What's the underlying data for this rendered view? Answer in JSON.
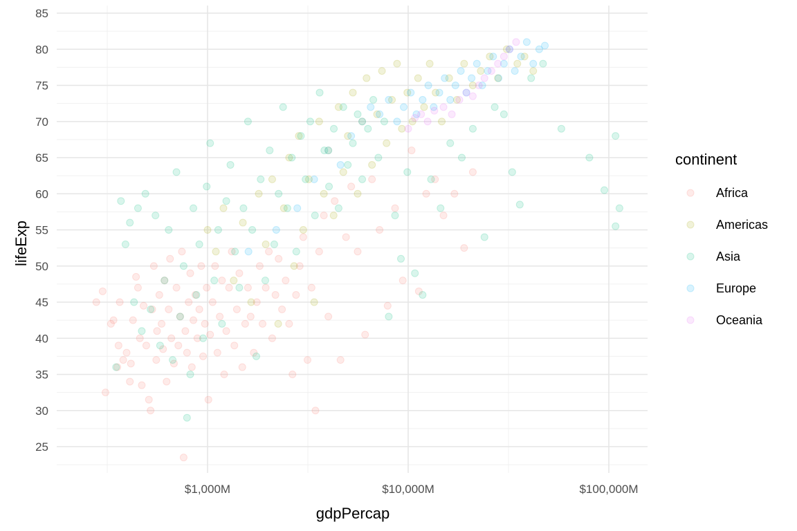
{
  "chart_data": {
    "type": "scatter",
    "title": "",
    "xlabel": "gdpPercap",
    "ylabel": "lifeExp",
    "x_scale": "log10",
    "xlim": [
      200,
      150000
    ],
    "ylim": [
      21,
      86
    ],
    "x_ticks": [
      {
        "value": 1000,
        "label": "$1,000M"
      },
      {
        "value": 10000,
        "label": "$10,000M"
      },
      {
        "value": 100000,
        "label": "$100,000M"
      }
    ],
    "y_ticks": [
      {
        "value": 25,
        "label": "25"
      },
      {
        "value": 30,
        "label": "30"
      },
      {
        "value": 35,
        "label": "35"
      },
      {
        "value": 40,
        "label": "40"
      },
      {
        "value": 45,
        "label": "45"
      },
      {
        "value": 50,
        "label": "50"
      },
      {
        "value": 55,
        "label": "55"
      },
      {
        "value": 60,
        "label": "60"
      },
      {
        "value": 65,
        "label": "65"
      },
      {
        "value": 70,
        "label": "70"
      },
      {
        "value": 75,
        "label": "75"
      },
      {
        "value": 80,
        "label": "80"
      },
      {
        "value": 85,
        "label": "85"
      }
    ],
    "grid": true,
    "point_alpha": 0.15,
    "legend": {
      "title": "continent",
      "position": "right"
    },
    "series": [
      {
        "name": "Africa",
        "color": "#F8766D",
        "points": [
          [
            279,
            45
          ],
          [
            300,
            46.5
          ],
          [
            310,
            32.5
          ],
          [
            330,
            42
          ],
          [
            340,
            42.5
          ],
          [
            355,
            36
          ],
          [
            360,
            39
          ],
          [
            365,
            45
          ],
          [
            380,
            37
          ],
          [
            395,
            38
          ],
          [
            410,
            34
          ],
          [
            415,
            36.5
          ],
          [
            425,
            42.5
          ],
          [
            440,
            48.5
          ],
          [
            450,
            47
          ],
          [
            460,
            40
          ],
          [
            470,
            33.5
          ],
          [
            480,
            44.5
          ],
          [
            495,
            39
          ],
          [
            510,
            31.5
          ],
          [
            520,
            30
          ],
          [
            530,
            44
          ],
          [
            540,
            50
          ],
          [
            555,
            37
          ],
          [
            560,
            41
          ],
          [
            575,
            46
          ],
          [
            590,
            42
          ],
          [
            600,
            38.5
          ],
          [
            610,
            48
          ],
          [
            625,
            34
          ],
          [
            640,
            44
          ],
          [
            650,
            51
          ],
          [
            660,
            40
          ],
          [
            680,
            36.5
          ],
          [
            700,
            47
          ],
          [
            715,
            39
          ],
          [
            730,
            43
          ],
          [
            745,
            52
          ],
          [
            760,
            23.5
          ],
          [
            775,
            41
          ],
          [
            790,
            38
          ],
          [
            805,
            45
          ],
          [
            820,
            49
          ],
          [
            835,
            36
          ],
          [
            850,
            42.5
          ],
          [
            870,
            46
          ],
          [
            890,
            40
          ],
          [
            910,
            44
          ],
          [
            930,
            50
          ],
          [
            950,
            37.5
          ],
          [
            970,
            42
          ],
          [
            990,
            47
          ],
          [
            1010,
            31.5
          ],
          [
            1030,
            40.5
          ],
          [
            1060,
            45
          ],
          [
            1090,
            50
          ],
          [
            1120,
            38
          ],
          [
            1150,
            43
          ],
          [
            1180,
            48
          ],
          [
            1210,
            35
          ],
          [
            1240,
            41
          ],
          [
            1280,
            47
          ],
          [
            1320,
            52
          ],
          [
            1360,
            39
          ],
          [
            1400,
            44
          ],
          [
            1440,
            49
          ],
          [
            1490,
            36
          ],
          [
            1540,
            42
          ],
          [
            1590,
            47
          ],
          [
            1640,
            43
          ],
          [
            1700,
            38
          ],
          [
            1760,
            45
          ],
          [
            1820,
            50
          ],
          [
            1880,
            42
          ],
          [
            1950,
            47
          ],
          [
            2020,
            52
          ],
          [
            2100,
            40
          ],
          [
            2180,
            46
          ],
          [
            2260,
            51
          ],
          [
            2350,
            44
          ],
          [
            2450,
            48
          ],
          [
            2550,
            42
          ],
          [
            2650,
            35
          ],
          [
            2760,
            46
          ],
          [
            2880,
            50
          ],
          [
            3000,
            54
          ],
          [
            3150,
            37
          ],
          [
            3300,
            47
          ],
          [
            3450,
            30
          ],
          [
            3600,
            52
          ],
          [
            3800,
            57
          ],
          [
            4000,
            43
          ],
          [
            4300,
            59
          ],
          [
            4600,
            37
          ],
          [
            4900,
            54
          ],
          [
            5200,
            61
          ],
          [
            5600,
            52
          ],
          [
            6100,
            40.5
          ],
          [
            6600,
            62
          ],
          [
            7200,
            55
          ],
          [
            7900,
            44.5
          ],
          [
            8600,
            58
          ],
          [
            9400,
            48
          ],
          [
            10400,
            66
          ],
          [
            11300,
            46.5
          ],
          [
            12300,
            60
          ],
          [
            13600,
            62
          ],
          [
            15000,
            57
          ],
          [
            17000,
            60
          ],
          [
            19000,
            52.5
          ],
          [
            21000,
            63
          ]
        ]
      },
      {
        "name": "Americas",
        "color": "#A3A500",
        "points": [
          [
            1000,
            55
          ],
          [
            1100,
            52
          ],
          [
            1200,
            58
          ],
          [
            1350,
            48
          ],
          [
            1500,
            56
          ],
          [
            1650,
            45
          ],
          [
            1800,
            60
          ],
          [
            1950,
            53
          ],
          [
            2100,
            62
          ],
          [
            2250,
            42
          ],
          [
            2400,
            58
          ],
          [
            2550,
            65
          ],
          [
            2700,
            50
          ],
          [
            2850,
            68
          ],
          [
            3000,
            55
          ],
          [
            3200,
            62
          ],
          [
            3400,
            45
          ],
          [
            3600,
            70
          ],
          [
            3800,
            60
          ],
          [
            4000,
            66
          ],
          [
            4250,
            57
          ],
          [
            4500,
            72
          ],
          [
            4750,
            63
          ],
          [
            5000,
            68
          ],
          [
            5300,
            74
          ],
          [
            5600,
            60
          ],
          [
            5900,
            70
          ],
          [
            6200,
            76
          ],
          [
            6600,
            64
          ],
          [
            7000,
            71
          ],
          [
            7400,
            77
          ],
          [
            7800,
            67
          ],
          [
            8300,
            73
          ],
          [
            8800,
            78
          ],
          [
            9300,
            69
          ],
          [
            9900,
            74
          ],
          [
            10500,
            70
          ],
          [
            11200,
            76
          ],
          [
            12000,
            72
          ],
          [
            12800,
            78
          ],
          [
            13700,
            74
          ],
          [
            14700,
            70
          ],
          [
            16000,
            76
          ],
          [
            17500,
            73
          ],
          [
            19000,
            78
          ],
          [
            21000,
            75
          ],
          [
            23000,
            77
          ],
          [
            25500,
            79
          ],
          [
            28000,
            76
          ],
          [
            31000,
            80
          ],
          [
            35000,
            78
          ],
          [
            38000,
            79
          ],
          [
            42000,
            77
          ]
        ]
      },
      {
        "name": "Asia",
        "color": "#00BF7D",
        "points": [
          [
            350,
            36
          ],
          [
            370,
            59
          ],
          [
            390,
            53
          ],
          [
            410,
            56
          ],
          [
            430,
            45
          ],
          [
            450,
            58
          ],
          [
            470,
            41
          ],
          [
            490,
            60
          ],
          [
            520,
            44
          ],
          [
            550,
            57
          ],
          [
            580,
            39
          ],
          [
            610,
            48
          ],
          [
            640,
            55
          ],
          [
            670,
            37
          ],
          [
            700,
            63
          ],
          [
            730,
            43
          ],
          [
            760,
            50
          ],
          [
            790,
            29
          ],
          [
            820,
            35
          ],
          [
            850,
            58
          ],
          [
            880,
            46
          ],
          [
            910,
            53
          ],
          [
            950,
            40
          ],
          [
            990,
            61
          ],
          [
            1030,
            67
          ],
          [
            1080,
            48
          ],
          [
            1130,
            55
          ],
          [
            1180,
            42
          ],
          [
            1240,
            59
          ],
          [
            1300,
            64
          ],
          [
            1370,
            52
          ],
          [
            1440,
            47
          ],
          [
            1510,
            58
          ],
          [
            1590,
            70
          ],
          [
            1670,
            55
          ],
          [
            1750,
            37.5
          ],
          [
            1840,
            62
          ],
          [
            1940,
            48
          ],
          [
            2040,
            66
          ],
          [
            2150,
            53
          ],
          [
            2260,
            60
          ],
          [
            2380,
            72
          ],
          [
            2500,
            58
          ],
          [
            2630,
            65
          ],
          [
            2770,
            52
          ],
          [
            2920,
            68
          ],
          [
            3080,
            62
          ],
          [
            3250,
            70
          ],
          [
            3430,
            57
          ],
          [
            3620,
            74
          ],
          [
            3820,
            66
          ],
          [
            4030,
            61
          ],
          [
            4260,
            69
          ],
          [
            4500,
            58
          ],
          [
            4750,
            72
          ],
          [
            5000,
            64
          ],
          [
            5300,
            67
          ],
          [
            5600,
            71
          ],
          [
            5900,
            62
          ],
          [
            6300,
            69
          ],
          [
            6700,
            73
          ],
          [
            7100,
            65
          ],
          [
            7600,
            70
          ],
          [
            8000,
            43
          ],
          [
            8600,
            57
          ],
          [
            9200,
            51
          ],
          [
            9900,
            63
          ],
          [
            10800,
            49
          ],
          [
            11800,
            46
          ],
          [
            13000,
            62
          ],
          [
            14500,
            58
          ],
          [
            16200,
            67
          ],
          [
            18500,
            65
          ],
          [
            21000,
            69
          ],
          [
            24000,
            54
          ],
          [
            27000,
            72
          ],
          [
            30000,
            71
          ],
          [
            33000,
            63
          ],
          [
            36000,
            58.5
          ],
          [
            41000,
            76
          ],
          [
            47000,
            78
          ],
          [
            58000,
            69
          ],
          [
            80000,
            65
          ],
          [
            95000,
            60.5
          ],
          [
            108000,
            55.5
          ],
          [
            113000,
            58
          ],
          [
            108000,
            68
          ]
        ]
      },
      {
        "name": "Europe",
        "color": "#00B0F6",
        "points": [
          [
            1600,
            52
          ],
          [
            2200,
            55
          ],
          [
            2800,
            58
          ],
          [
            3400,
            62
          ],
          [
            4000,
            66
          ],
          [
            4600,
            64
          ],
          [
            5200,
            68
          ],
          [
            5900,
            70
          ],
          [
            6500,
            72
          ],
          [
            7200,
            71
          ],
          [
            8000,
            73
          ],
          [
            8800,
            70
          ],
          [
            9500,
            72
          ],
          [
            10300,
            74
          ],
          [
            11000,
            71
          ],
          [
            11800,
            73
          ],
          [
            12600,
            75
          ],
          [
            13400,
            72
          ],
          [
            14300,
            74
          ],
          [
            15200,
            76
          ],
          [
            16200,
            73
          ],
          [
            17200,
            75
          ],
          [
            18300,
            77
          ],
          [
            19500,
            74
          ],
          [
            20700,
            76
          ],
          [
            22000,
            78
          ],
          [
            23400,
            75
          ],
          [
            24900,
            77
          ],
          [
            26500,
            79
          ],
          [
            28200,
            76
          ],
          [
            30000,
            78
          ],
          [
            32000,
            80
          ],
          [
            34000,
            77
          ],
          [
            36500,
            79
          ],
          [
            39000,
            81
          ],
          [
            42000,
            78
          ],
          [
            45000,
            80
          ],
          [
            48000,
            80.5
          ]
        ]
      },
      {
        "name": "Oceania",
        "color": "#E76BF3",
        "points": [
          [
            10000,
            69
          ],
          [
            10800,
            70.5
          ],
          [
            11600,
            71
          ],
          [
            12500,
            70
          ],
          [
            13500,
            71.5
          ],
          [
            15000,
            72
          ],
          [
            16500,
            71
          ],
          [
            18000,
            73
          ],
          [
            19500,
            74
          ],
          [
            21000,
            73.5
          ],
          [
            22500,
            75
          ],
          [
            24000,
            76
          ],
          [
            26000,
            77
          ],
          [
            28000,
            78
          ],
          [
            30000,
            79
          ],
          [
            32000,
            80
          ],
          [
            34500,
            81
          ]
        ]
      }
    ]
  }
}
